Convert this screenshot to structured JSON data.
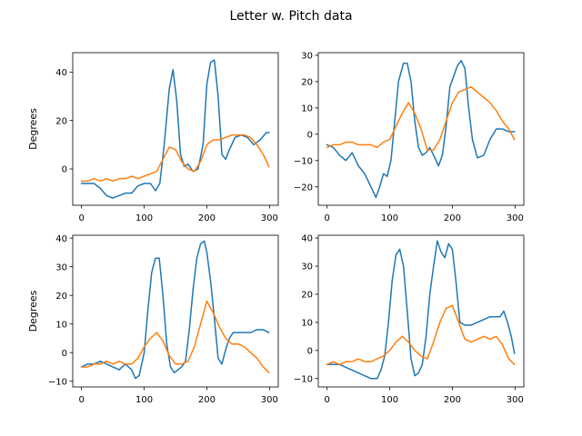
{
  "figure": {
    "title": "Letter w. Pitch data"
  },
  "colors": {
    "series_1": "#1f77b4",
    "series_2": "#ff7f0e"
  },
  "chart_data": [
    {
      "type": "line",
      "panel": "top-left",
      "ylabel": "Degrees",
      "xlim": [
        -14,
        314
      ],
      "ylim": [
        -15,
        48
      ],
      "xticks": [
        0,
        100,
        200,
        300
      ],
      "yticks": [
        0,
        20,
        40
      ],
      "series": [
        {
          "color": "#1f77b4",
          "x": [
            0,
            10,
            20,
            30,
            40,
            50,
            60,
            70,
            80,
            90,
            100,
            110,
            118,
            125,
            132,
            140,
            146,
            152,
            158,
            164,
            170,
            178,
            186,
            194,
            200,
            206,
            212,
            218,
            224,
            230,
            236,
            245,
            255,
            265,
            275,
            285,
            295,
            299
          ],
          "y": [
            -6,
            -6,
            -6,
            -8,
            -11,
            -12,
            -11,
            -10,
            -10,
            -7,
            -6,
            -6,
            -9,
            -6,
            10,
            33,
            41,
            28,
            6,
            1,
            2,
            -1,
            0,
            10,
            35,
            44,
            45,
            30,
            6,
            4,
            8,
            13,
            14,
            13,
            10,
            12,
            15,
            15
          ]
        },
        {
          "color": "#ff7f0e",
          "x": [
            0,
            10,
            20,
            30,
            40,
            50,
            60,
            70,
            80,
            90,
            100,
            110,
            120,
            130,
            140,
            150,
            160,
            170,
            180,
            190,
            200,
            210,
            220,
            230,
            240,
            250,
            260,
            270,
            280,
            290,
            299
          ],
          "y": [
            -5,
            -5,
            -4,
            -5,
            -4,
            -5,
            -4,
            -4,
            -3,
            -4,
            -3,
            -2,
            -1,
            4,
            9,
            8,
            3,
            0,
            -1,
            3,
            10,
            12,
            12,
            13,
            14,
            14,
            14,
            13,
            10,
            6,
            1
          ]
        }
      ]
    },
    {
      "type": "line",
      "panel": "top-right",
      "ylabel": "",
      "xlim": [
        -14,
        314
      ],
      "ylim": [
        -27,
        31
      ],
      "xticks": [
        0,
        100,
        200,
        300
      ],
      "yticks": [
        -20,
        -10,
        0,
        10,
        20,
        30
      ],
      "series": [
        {
          "color": "#1f77b4",
          "x": [
            0,
            10,
            20,
            30,
            40,
            50,
            60,
            70,
            78,
            84,
            90,
            96,
            102,
            108,
            114,
            122,
            128,
            134,
            140,
            146,
            152,
            158,
            164,
            170,
            178,
            184,
            190,
            196,
            202,
            208,
            214,
            220,
            226,
            232,
            240,
            250,
            260,
            270,
            280,
            290,
            299
          ],
          "y": [
            -4,
            -5,
            -8,
            -10,
            -7,
            -12,
            -15,
            -20,
            -24,
            -20,
            -15,
            -16,
            -10,
            5,
            20,
            27,
            27,
            20,
            5,
            -5,
            -8,
            -7,
            -5,
            -8,
            -12,
            -8,
            3,
            18,
            22,
            26,
            28,
            25,
            10,
            -2,
            -9,
            -8,
            -2,
            2,
            2,
            1,
            1
          ]
        },
        {
          "color": "#ff7f0e",
          "x": [
            0,
            10,
            20,
            30,
            40,
            50,
            60,
            70,
            80,
            90,
            100,
            110,
            120,
            130,
            140,
            150,
            160,
            170,
            180,
            190,
            200,
            210,
            220,
            230,
            240,
            250,
            260,
            270,
            280,
            290,
            299
          ],
          "y": [
            -5,
            -4,
            -4,
            -3,
            -3,
            -4,
            -4,
            -4,
            -5,
            -3,
            -2,
            3,
            8,
            12,
            8,
            2,
            -6,
            -6,
            -2,
            5,
            12,
            16,
            17,
            18,
            16,
            14,
            12,
            9,
            5,
            2,
            -2
          ]
        }
      ]
    },
    {
      "type": "line",
      "panel": "bottom-left",
      "ylabel": "Degrees",
      "xlim": [
        -14,
        314
      ],
      "ylim": [
        -12,
        41
      ],
      "xticks": [
        0,
        100,
        200,
        300
      ],
      "yticks": [
        -10,
        0,
        10,
        20,
        30,
        40
      ],
      "series": [
        {
          "color": "#1f77b4",
          "x": [
            0,
            10,
            20,
            30,
            40,
            50,
            60,
            70,
            80,
            86,
            92,
            100,
            106,
            112,
            118,
            124,
            130,
            136,
            142,
            148,
            154,
            160,
            166,
            172,
            178,
            184,
            190,
            196,
            200,
            206,
            212,
            218,
            224,
            230,
            236,
            242,
            250,
            260,
            270,
            280,
            290,
            299
          ],
          "y": [
            -5,
            -4,
            -4,
            -3,
            -4,
            -5,
            -6,
            -4,
            -6,
            -9,
            -8,
            0,
            15,
            28,
            33,
            33,
            20,
            3,
            -5,
            -7,
            -6,
            -5,
            -3,
            8,
            22,
            33,
            38,
            39,
            35,
            25,
            12,
            -2,
            -4,
            1,
            5,
            7,
            7,
            7,
            7,
            8,
            8,
            7
          ]
        },
        {
          "color": "#ff7f0e",
          "x": [
            0,
            10,
            20,
            30,
            40,
            50,
            60,
            70,
            80,
            90,
            100,
            110,
            120,
            130,
            140,
            150,
            160,
            170,
            180,
            190,
            200,
            210,
            220,
            230,
            240,
            250,
            260,
            270,
            280,
            290,
            299
          ],
          "y": [
            -5,
            -5,
            -4,
            -4,
            -3,
            -4,
            -3,
            -4,
            -4,
            -2,
            2,
            5,
            7,
            4,
            -1,
            -4,
            -4,
            -3,
            2,
            10,
            18,
            14,
            9,
            5,
            3,
            3,
            2,
            0,
            -2,
            -5,
            -7
          ]
        }
      ]
    },
    {
      "type": "line",
      "panel": "bottom-right",
      "ylabel": "",
      "xlim": [
        -14,
        314
      ],
      "ylim": [
        -13,
        41
      ],
      "xticks": [
        0,
        100,
        200,
        300
      ],
      "yticks": [
        -10,
        0,
        10,
        20,
        30,
        40
      ],
      "series": [
        {
          "color": "#1f77b4",
          "x": [
            0,
            10,
            20,
            30,
            40,
            50,
            60,
            70,
            80,
            86,
            92,
            98,
            104,
            110,
            116,
            122,
            128,
            134,
            140,
            146,
            152,
            158,
            164,
            170,
            176,
            182,
            188,
            194,
            200,
            206,
            212,
            220,
            230,
            240,
            250,
            260,
            270,
            276,
            282,
            288,
            294,
            299
          ],
          "y": [
            -5,
            -5,
            -5,
            -6,
            -7,
            -8,
            -9,
            -10,
            -10,
            -7,
            -2,
            10,
            25,
            34,
            36,
            30,
            14,
            -3,
            -9,
            -8,
            -5,
            5,
            20,
            30,
            39,
            35,
            33,
            38,
            36,
            24,
            10,
            9,
            9,
            10,
            11,
            12,
            12,
            12,
            14,
            10,
            5,
            -1
          ]
        },
        {
          "color": "#ff7f0e",
          "x": [
            0,
            10,
            20,
            30,
            40,
            50,
            60,
            70,
            80,
            90,
            100,
            110,
            120,
            130,
            140,
            150,
            160,
            170,
            180,
            190,
            200,
            210,
            220,
            230,
            240,
            250,
            260,
            270,
            280,
            290,
            299
          ],
          "y": [
            -5,
            -4,
            -5,
            -4,
            -4,
            -3,
            -4,
            -4,
            -3,
            -2,
            0,
            3,
            5,
            3,
            0,
            -2,
            -3,
            3,
            10,
            15,
            16,
            10,
            4,
            3,
            4,
            5,
            4,
            5,
            2,
            -3,
            -5
          ]
        }
      ]
    }
  ]
}
